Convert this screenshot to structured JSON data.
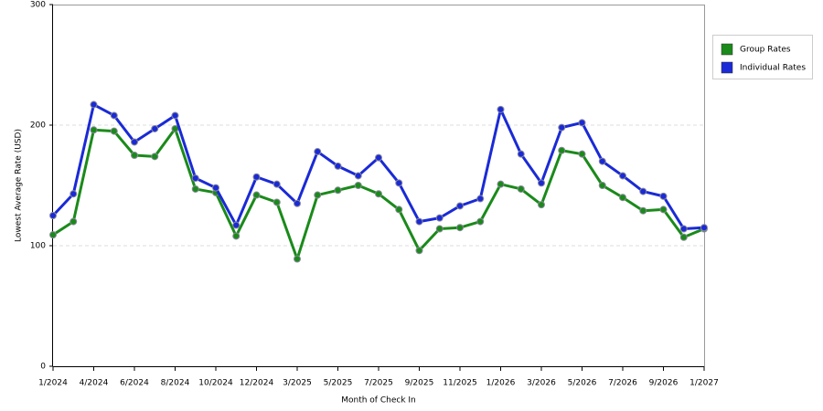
{
  "chart_data": {
    "type": "line",
    "x_label": "Month of Check In",
    "y_label": "Lowest Average Rate (USD)",
    "categories": [
      "1/2024",
      null,
      "4/2024",
      null,
      "6/2024",
      null,
      "8/2024",
      null,
      "10/2024",
      null,
      "12/2024",
      null,
      "3/2025",
      null,
      "5/2025",
      null,
      "7/2025",
      null,
      "9/2025",
      null,
      "11/2025",
      null,
      "1/2026",
      null,
      "3/2026",
      null,
      "5/2026",
      null,
      "7/2026",
      null,
      "9/2026",
      null,
      "1/2027"
    ],
    "series": [
      {
        "name": "Group Rates",
        "color": "#1a8a1a",
        "values": [
          109,
          120,
          196,
          195,
          175,
          174,
          197,
          147,
          144,
          108,
          142,
          136,
          89,
          142,
          146,
          150,
          143,
          130,
          96,
          114,
          115,
          120,
          151,
          147,
          134,
          179,
          176,
          150,
          140,
          129,
          130,
          107,
          114
        ]
      },
      {
        "name": "Individual Rates",
        "color": "#1a2ad6",
        "values": [
          125,
          143,
          217,
          208,
          186,
          197,
          208,
          156,
          148,
          117,
          157,
          151,
          135,
          178,
          166,
          158,
          173,
          152,
          120,
          123,
          133,
          139,
          213,
          176,
          152,
          198,
          202,
          170,
          158,
          145,
          141,
          114,
          115
        ]
      }
    ],
    "ylim": [
      0,
      300
    ],
    "yticks": [
      0,
      100,
      200,
      300
    ],
    "grid": true
  }
}
